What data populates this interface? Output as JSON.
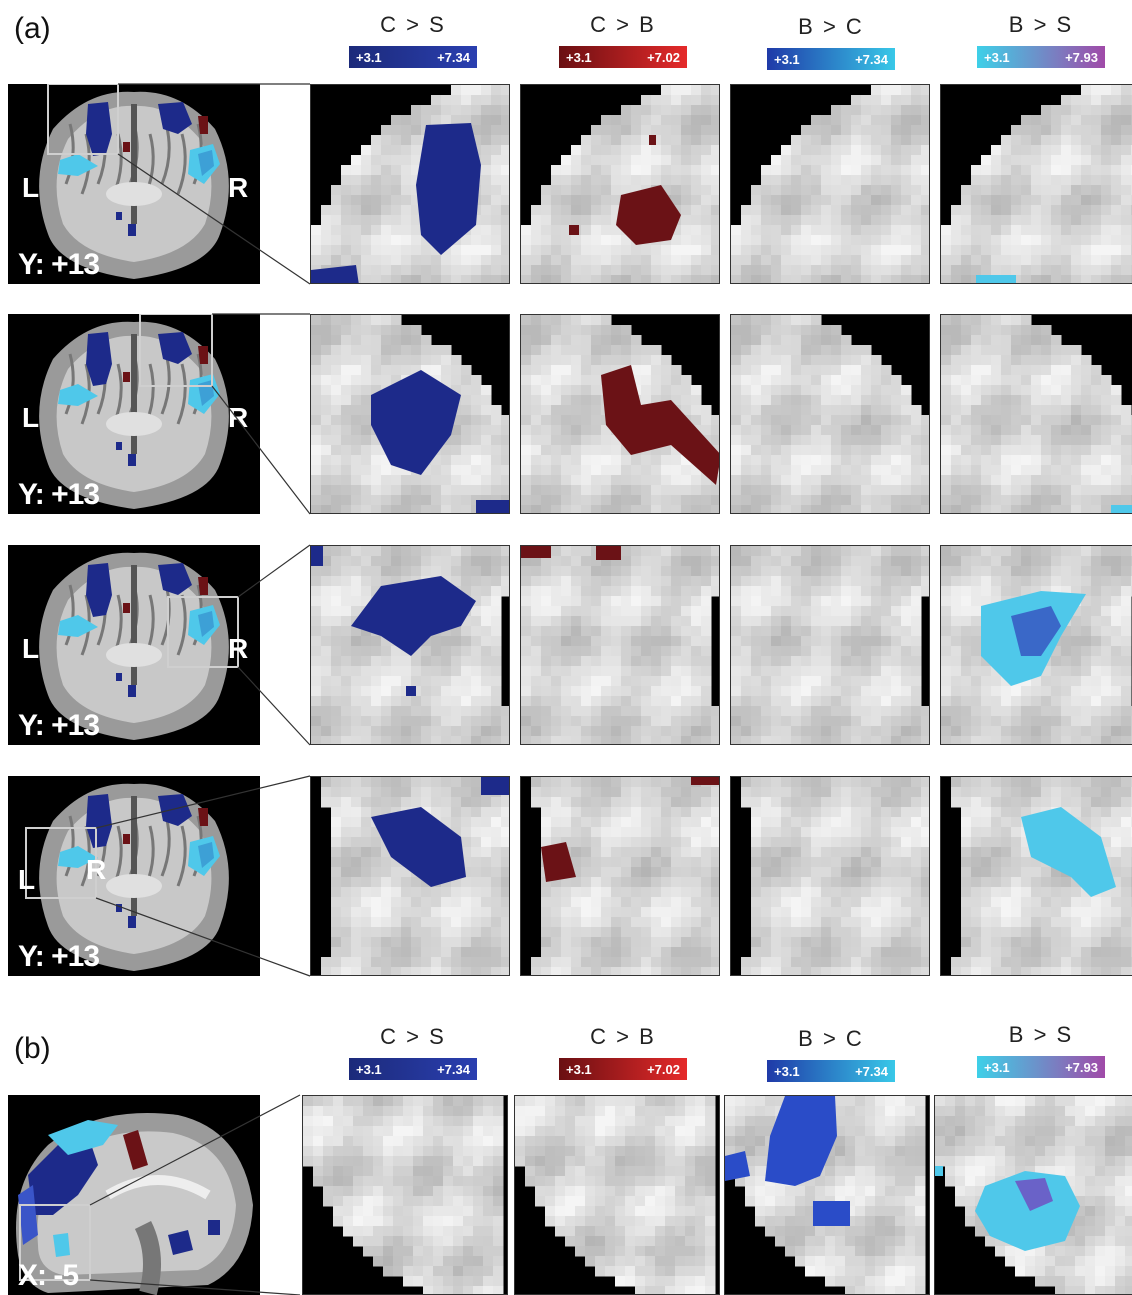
{
  "panel_a": {
    "label": "(a)",
    "columns": [
      {
        "title": "C > S",
        "min": "+3.1",
        "max": "+7.34",
        "gradient": [
          "#1c2a7a",
          "#2a3fb0"
        ]
      },
      {
        "title": "C > B",
        "min": "+3.1",
        "max": "+7.02",
        "gradient": [
          "#6a0f12",
          "#e52a2a"
        ]
      },
      {
        "title": "B > C",
        "min": "+3.1",
        "max": "+7.34",
        "gradient": [
          "#1f3aa8",
          "#38c8e8"
        ]
      },
      {
        "title": "B > S",
        "min": "+3.1",
        "max": "+7.93",
        "gradient": [
          "#3ed0e8",
          "#a04aa8"
        ]
      }
    ],
    "rows": [
      {
        "caption": "Y: +13",
        "left_marker": "L",
        "right_marker": "R"
      },
      {
        "caption": "Y: +13",
        "left_marker": "L",
        "right_marker": "R"
      },
      {
        "caption": "Y: +13",
        "left_marker": "L",
        "right_marker": "R"
      },
      {
        "caption": "Y: +13",
        "left_marker": "L",
        "right_marker": "R"
      }
    ]
  },
  "panel_b": {
    "label": "(b)",
    "columns": [
      {
        "title": "C > S",
        "min": "+3.1",
        "max": "+7.34",
        "gradient": [
          "#1c2a7a",
          "#2a3fb0"
        ]
      },
      {
        "title": "C > B",
        "min": "+3.1",
        "max": "+7.02",
        "gradient": [
          "#6a0f12",
          "#e52a2a"
        ]
      },
      {
        "title": "B > C",
        "min": "+3.1",
        "max": "+7.34",
        "gradient": [
          "#1f3aa8",
          "#38c8e8"
        ]
      },
      {
        "title": "B > S",
        "min": "+3.1",
        "max": "+7.93",
        "gradient": [
          "#3ed0e8",
          "#a04aa8"
        ]
      }
    ],
    "caption": "X: -5"
  }
}
